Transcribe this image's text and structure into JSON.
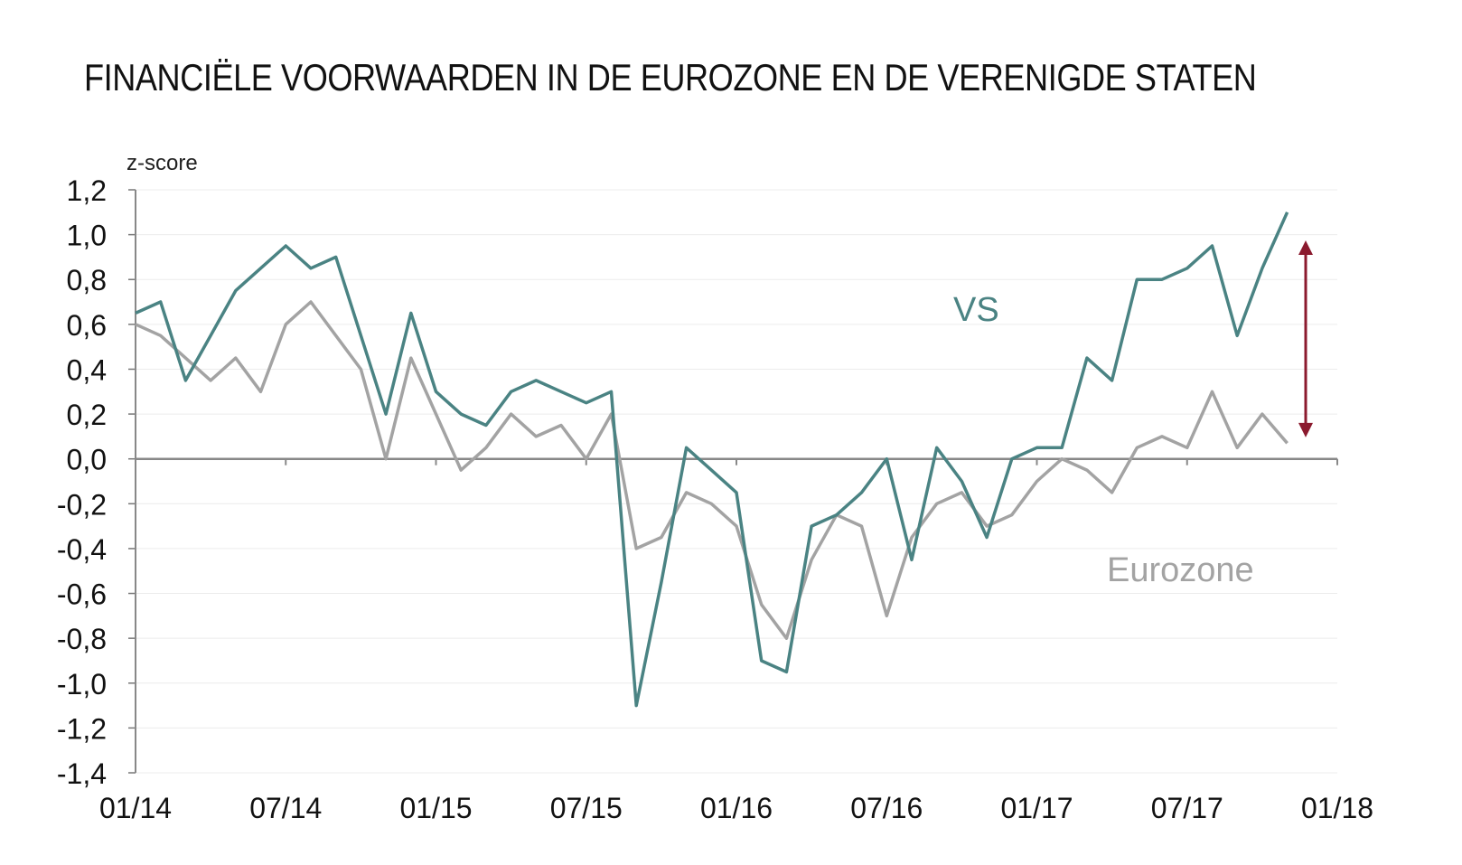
{
  "chart_data": {
    "type": "line",
    "title": "FINANCIËLE VOORWAARDEN IN DE EUROZONE EN DE VERENIGDE STATEN",
    "ylabel": "z-score",
    "xlabel": "",
    "x_ticks": [
      "01/14",
      "07/14",
      "01/15",
      "07/15",
      "01/16",
      "07/16",
      "01/17",
      "07/17",
      "01/18"
    ],
    "y_ticks": [
      "1,2",
      "1,0",
      "0,8",
      "0,6",
      "0,4",
      "0,2",
      "0,0",
      "-0,2",
      "-0,4",
      "-0,6",
      "-0,8",
      "-1,0",
      "-1,2",
      "-1,4"
    ],
    "ylim": [
      -1.4,
      1.2
    ],
    "xlim": [
      "2014-01",
      "2018-01"
    ],
    "grid": true,
    "series": [
      {
        "name": "VS",
        "color": "#4a8383",
        "x": [
          "2014-01",
          "2014-02",
          "2014-03",
          "2014-04",
          "2014-05",
          "2014-06",
          "2014-07",
          "2014-08",
          "2014-09",
          "2014-10",
          "2014-11",
          "2014-12",
          "2015-01",
          "2015-02",
          "2015-03",
          "2015-04",
          "2015-05",
          "2015-06",
          "2015-07",
          "2015-08",
          "2015-09",
          "2015-10",
          "2015-11",
          "2015-12",
          "2016-01",
          "2016-02",
          "2016-03",
          "2016-04",
          "2016-05",
          "2016-06",
          "2016-07",
          "2016-08",
          "2016-09",
          "2016-10",
          "2016-11",
          "2016-12",
          "2017-01",
          "2017-02",
          "2017-03",
          "2017-04",
          "2017-05",
          "2017-06",
          "2017-07",
          "2017-08",
          "2017-09",
          "2017-10",
          "2017-11"
        ],
        "values": [
          0.65,
          0.7,
          0.35,
          0.55,
          0.75,
          0.85,
          0.95,
          0.85,
          0.9,
          0.55,
          0.2,
          0.65,
          0.3,
          0.2,
          0.15,
          0.3,
          0.35,
          0.3,
          0.25,
          0.3,
          -1.1,
          -0.55,
          0.05,
          -0.05,
          -0.15,
          -0.9,
          -0.95,
          -0.3,
          -0.25,
          -0.15,
          0.0,
          -0.45,
          0.05,
          -0.1,
          -0.35,
          0.0,
          0.05,
          0.05,
          0.45,
          0.35,
          0.8,
          0.8,
          0.85,
          0.95,
          0.55,
          0.85,
          1.1
        ]
      },
      {
        "name": "Eurozone",
        "color": "#a3a3a3",
        "x": [
          "2014-01",
          "2014-02",
          "2014-03",
          "2014-04",
          "2014-05",
          "2014-06",
          "2014-07",
          "2014-08",
          "2014-09",
          "2014-10",
          "2014-11",
          "2014-12",
          "2015-01",
          "2015-02",
          "2015-03",
          "2015-04",
          "2015-05",
          "2015-06",
          "2015-07",
          "2015-08",
          "2015-09",
          "2015-10",
          "2015-11",
          "2015-12",
          "2016-01",
          "2016-02",
          "2016-03",
          "2016-04",
          "2016-05",
          "2016-06",
          "2016-07",
          "2016-08",
          "2016-09",
          "2016-10",
          "2016-11",
          "2016-12",
          "2017-01",
          "2017-02",
          "2017-03",
          "2017-04",
          "2017-05",
          "2017-06",
          "2017-07",
          "2017-08",
          "2017-09",
          "2017-10",
          "2017-11"
        ],
        "values": [
          0.6,
          0.55,
          0.45,
          0.35,
          0.45,
          0.3,
          0.6,
          0.7,
          0.55,
          0.4,
          0.0,
          0.45,
          0.2,
          -0.05,
          0.05,
          0.2,
          0.1,
          0.15,
          0.0,
          0.2,
          -0.4,
          -0.35,
          -0.15,
          -0.2,
          -0.3,
          -0.65,
          -0.8,
          -0.45,
          -0.25,
          -0.3,
          -0.7,
          -0.35,
          -0.2,
          -0.15,
          -0.3,
          -0.25,
          -0.1,
          0.0,
          -0.05,
          -0.15,
          0.05,
          0.1,
          0.05,
          0.3,
          0.05,
          0.2,
          0.07
        ]
      }
    ],
    "annotations": [
      {
        "text": "VS",
        "color": "#4a8383"
      },
      {
        "text": "Eurozone",
        "color": "#a3a3a3"
      },
      {
        "type": "double-arrow",
        "color": "#8b1a2e",
        "x": "2017-11",
        "from": 0.95,
        "to": 0.12
      }
    ]
  }
}
